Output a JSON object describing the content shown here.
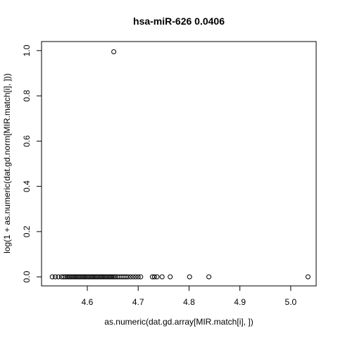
{
  "chart_data": {
    "type": "scatter",
    "title": "hsa-miR-626   0.0406",
    "xlabel": "as.numeric(dat.gd.array[MIR.match[i], ])",
    "ylabel": "log(1 + as.numeric(dat.gd.norm[MIR.match[i], ]))",
    "xlim": [
      4.51,
      5.05
    ],
    "ylim": [
      -0.04,
      1.04
    ],
    "xticks": [
      4.6,
      4.7,
      4.8,
      4.9,
      5.0
    ],
    "xtick_labels": [
      "4.6",
      "4.7",
      "4.8",
      "4.9",
      "5.0"
    ],
    "yticks": [
      0.0,
      0.2,
      0.4,
      0.6,
      0.8,
      1.0
    ],
    "ytick_labels": [
      "0.0",
      "0.2",
      "0.4",
      "0.6",
      "0.8",
      "1.0"
    ],
    "grid": false,
    "legend": "none",
    "points": [
      {
        "x": 4.652,
        "y": 0.995
      },
      {
        "x": 4.531,
        "y": 0
      },
      {
        "x": 4.537,
        "y": 0
      },
      {
        "x": 4.543,
        "y": 0
      },
      {
        "x": 4.549,
        "y": 0
      },
      {
        "x": 4.553,
        "y": 0
      },
      {
        "x": 4.557,
        "y": 0
      },
      {
        "x": 4.56,
        "y": 0
      },
      {
        "x": 4.563,
        "y": 0
      },
      {
        "x": 4.566,
        "y": 0
      },
      {
        "x": 4.569,
        "y": 0
      },
      {
        "x": 4.572,
        "y": 0
      },
      {
        "x": 4.575,
        "y": 0
      },
      {
        "x": 4.578,
        "y": 0
      },
      {
        "x": 4.581,
        "y": 0
      },
      {
        "x": 4.584,
        "y": 0
      },
      {
        "x": 4.587,
        "y": 0
      },
      {
        "x": 4.59,
        "y": 0
      },
      {
        "x": 4.593,
        "y": 0
      },
      {
        "x": 4.596,
        "y": 0
      },
      {
        "x": 4.599,
        "y": 0
      },
      {
        "x": 4.602,
        "y": 0
      },
      {
        "x": 4.605,
        "y": 0
      },
      {
        "x": 4.608,
        "y": 0
      },
      {
        "x": 4.611,
        "y": 0
      },
      {
        "x": 4.614,
        "y": 0
      },
      {
        "x": 4.617,
        "y": 0
      },
      {
        "x": 4.62,
        "y": 0
      },
      {
        "x": 4.623,
        "y": 0
      },
      {
        "x": 4.626,
        "y": 0
      },
      {
        "x": 4.629,
        "y": 0
      },
      {
        "x": 4.632,
        "y": 0
      },
      {
        "x": 4.635,
        "y": 0
      },
      {
        "x": 4.638,
        "y": 0
      },
      {
        "x": 4.641,
        "y": 0
      },
      {
        "x": 4.644,
        "y": 0
      },
      {
        "x": 4.647,
        "y": 0
      },
      {
        "x": 4.65,
        "y": 0
      },
      {
        "x": 4.653,
        "y": 0
      },
      {
        "x": 4.656,
        "y": 0
      },
      {
        "x": 4.66,
        "y": 0
      },
      {
        "x": 4.664,
        "y": 0
      },
      {
        "x": 4.668,
        "y": 0
      },
      {
        "x": 4.672,
        "y": 0
      },
      {
        "x": 4.676,
        "y": 0
      },
      {
        "x": 4.68,
        "y": 0
      },
      {
        "x": 4.685,
        "y": 0
      },
      {
        "x": 4.69,
        "y": 0
      },
      {
        "x": 4.695,
        "y": 0
      },
      {
        "x": 4.7,
        "y": 0
      },
      {
        "x": 4.705,
        "y": 0
      },
      {
        "x": 4.728,
        "y": 0
      },
      {
        "x": 4.732,
        "y": 0
      },
      {
        "x": 4.737,
        "y": 0
      },
      {
        "x": 4.747,
        "y": 0
      },
      {
        "x": 4.763,
        "y": 0
      },
      {
        "x": 4.801,
        "y": 0
      },
      {
        "x": 4.839,
        "y": 0
      },
      {
        "x": 5.034,
        "y": 0
      }
    ]
  }
}
